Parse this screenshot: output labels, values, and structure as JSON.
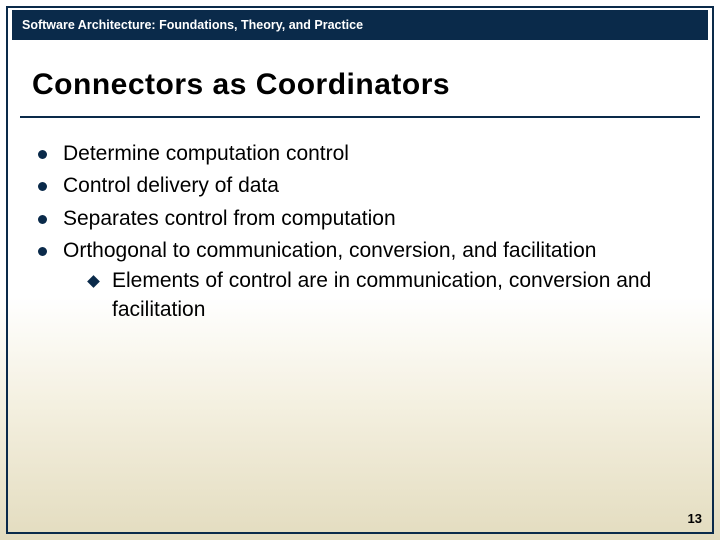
{
  "header": {
    "title": "Software Architecture: Foundations, Theory, and Practice"
  },
  "slide": {
    "title": "Connectors as Coordinators",
    "bullets": [
      {
        "text": "Determine computation control",
        "subs": []
      },
      {
        "text": "Control delivery of data",
        "subs": []
      },
      {
        "text": "Separates control from computation",
        "subs": []
      },
      {
        "text": "Orthogonal to communication, conversion, and facilitation",
        "subs": [
          {
            "text": "Elements of control are in communication, conversion and facilitation"
          }
        ]
      }
    ]
  },
  "page_number": "13",
  "colors": {
    "frame": "#0a2a4a",
    "header_bg": "#0a2a4a",
    "header_text": "#ffffff",
    "text": "#000000",
    "bg_top": "#ffffff",
    "bg_bottom": "#e3dcbf"
  },
  "fonts": {
    "header_size_pt": 12.5,
    "title_size_pt": 30,
    "body_size_pt": 21,
    "pagenum_size_pt": 13
  }
}
